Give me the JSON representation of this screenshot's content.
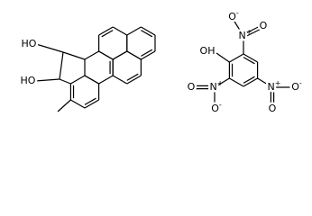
{
  "left_molecule": {
    "hydroxyl_1": "HO",
    "hydroxyl_2": "HO"
  },
  "right_molecule": {
    "hydroxyl": "OH",
    "nitro_groups": [
      {
        "n": "N",
        "plus": "+",
        "o_double": "O",
        "o_single": "O",
        "minus": "-"
      },
      {
        "n": "N",
        "plus": "+",
        "o_double": "O",
        "o_single": "O",
        "minus": "-"
      },
      {
        "n": "N",
        "plus": "+",
        "o_double": "O",
        "o_single": "O",
        "minus": "-"
      }
    ]
  }
}
